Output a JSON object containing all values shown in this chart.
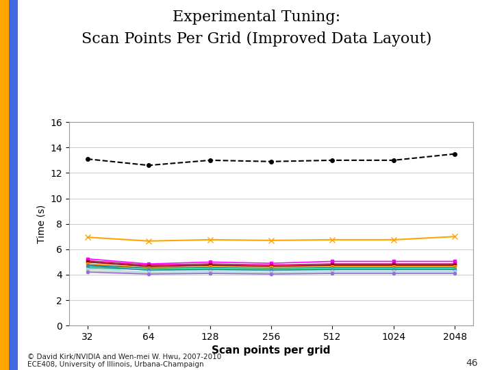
{
  "title_line1": "Experimental Tuning:",
  "title_line2": "Scan Points Per Grid (Improved Data Layout)",
  "xlabel": "Scan points per grid",
  "ylabel": "Time (s)",
  "x_ticks": [
    32,
    64,
    128,
    256,
    512,
    1024,
    2048
  ],
  "ylim": [
    0,
    16
  ],
  "yticks": [
    0,
    2,
    4,
    6,
    8,
    10,
    12,
    14,
    16
  ],
  "copyright": "© David Kirk/NVIDIA and Wen-mei W. Hwu, 2007-2010\nECE408, University of Illinois, Urbana-Champaign",
  "slide_number": "46",
  "series": [
    {
      "color": "#000000",
      "marker": "o",
      "linestyle": "--",
      "linewidth": 1.5,
      "markersize": 4,
      "values": [
        13.1,
        12.6,
        13.0,
        12.9,
        13.0,
        13.0,
        13.5
      ]
    },
    {
      "color": "#FFA500",
      "marker": "x",
      "linestyle": "-",
      "linewidth": 1.5,
      "markersize": 6,
      "values": [
        6.95,
        6.65,
        6.75,
        6.7,
        6.75,
        6.75,
        7.0
      ]
    },
    {
      "color": "#FF00FF",
      "marker": "s",
      "linestyle": "-",
      "linewidth": 1.2,
      "markersize": 3,
      "values": [
        5.25,
        4.85,
        5.0,
        4.9,
        5.05,
        5.05,
        5.05
      ]
    },
    {
      "color": "#CC0066",
      "marker": "s",
      "linestyle": "-",
      "linewidth": 1.2,
      "markersize": 3,
      "values": [
        5.1,
        4.75,
        4.85,
        4.75,
        4.85,
        4.85,
        4.85
      ]
    },
    {
      "color": "#800000",
      "marker": "s",
      "linestyle": "-",
      "linewidth": 1.2,
      "markersize": 3,
      "values": [
        5.0,
        4.65,
        4.75,
        4.65,
        4.75,
        4.75,
        4.75
      ]
    },
    {
      "color": "#FF8C00",
      "marker": "s",
      "linestyle": "-",
      "linewidth": 1.2,
      "markersize": 3,
      "values": [
        4.85,
        4.55,
        4.65,
        4.6,
        4.65,
        4.65,
        4.65
      ]
    },
    {
      "color": "#008080",
      "marker": "^",
      "linestyle": "-",
      "linewidth": 1.2,
      "markersize": 3,
      "values": [
        4.75,
        4.5,
        4.55,
        4.5,
        4.55,
        4.55,
        4.55
      ]
    },
    {
      "color": "#90EE90",
      "marker": "^",
      "linestyle": "-",
      "linewidth": 1.2,
      "markersize": 3,
      "values": [
        4.65,
        4.45,
        4.5,
        4.45,
        4.5,
        4.5,
        4.5
      ]
    },
    {
      "color": "#00CC66",
      "marker": "^",
      "linestyle": "-",
      "linewidth": 1.2,
      "markersize": 3,
      "values": [
        4.55,
        4.4,
        4.45,
        4.4,
        4.45,
        4.45,
        4.45
      ]
    },
    {
      "color": "#4682B4",
      "marker": "o",
      "linestyle": "-",
      "linewidth": 1.2,
      "markersize": 3,
      "values": [
        4.7,
        4.35,
        4.4,
        4.35,
        4.4,
        4.4,
        4.4
      ]
    },
    {
      "color": "#ADD8E6",
      "marker": "o",
      "linestyle": "-",
      "linewidth": 1.2,
      "markersize": 3,
      "values": [
        4.45,
        4.2,
        4.25,
        4.2,
        4.25,
        4.25,
        4.25
      ]
    },
    {
      "color": "#C0C0C0",
      "marker": "o",
      "linestyle": "-",
      "linewidth": 1.2,
      "markersize": 3,
      "values": [
        4.3,
        4.1,
        4.15,
        4.1,
        4.15,
        4.15,
        4.15
      ]
    },
    {
      "color": "#9370DB",
      "marker": "o",
      "linestyle": "-",
      "linewidth": 1.2,
      "markersize": 3,
      "values": [
        4.2,
        4.05,
        4.1,
        4.05,
        4.1,
        4.1,
        4.1
      ]
    }
  ],
  "background_color": "#FFFFFF",
  "left_bar_color_orange": "#FFA500",
  "left_bar_color_blue": "#4169E1"
}
